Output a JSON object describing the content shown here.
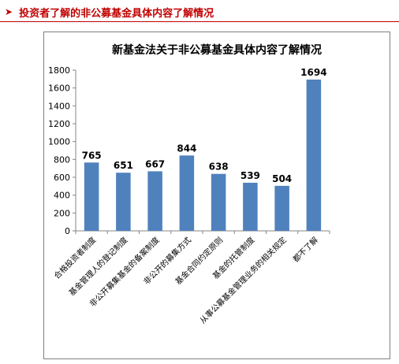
{
  "page": {
    "heading_marker": "➤",
    "heading": "投资者了解的非公募基金具体内容了解情况"
  },
  "colors": {
    "heading": "#c00000",
    "bar": "#4f81bd",
    "frame": "#7f7f7f",
    "grid": "#d9d9d9"
  },
  "chart_data": {
    "type": "bar",
    "title": "新基金法关于非公募基金具体内容了解情况",
    "categories": [
      "合格投资者制度",
      "基金管理人的登记制度",
      "非公开募集基金的备案制度",
      "非公开的募集方式",
      "基金合同约定原则",
      "基金的托管制度",
      "从事公募基金管理业务的相关规定",
      "都不了解"
    ],
    "values": [
      765,
      651,
      667,
      844,
      638,
      539,
      504,
      1694
    ],
    "ylim": [
      0,
      1800
    ],
    "yticks": [
      0,
      200,
      400,
      600,
      800,
      1000,
      1200,
      1400,
      1600,
      1800
    ],
    "grid": false,
    "legend": "none",
    "data_labels": true
  }
}
